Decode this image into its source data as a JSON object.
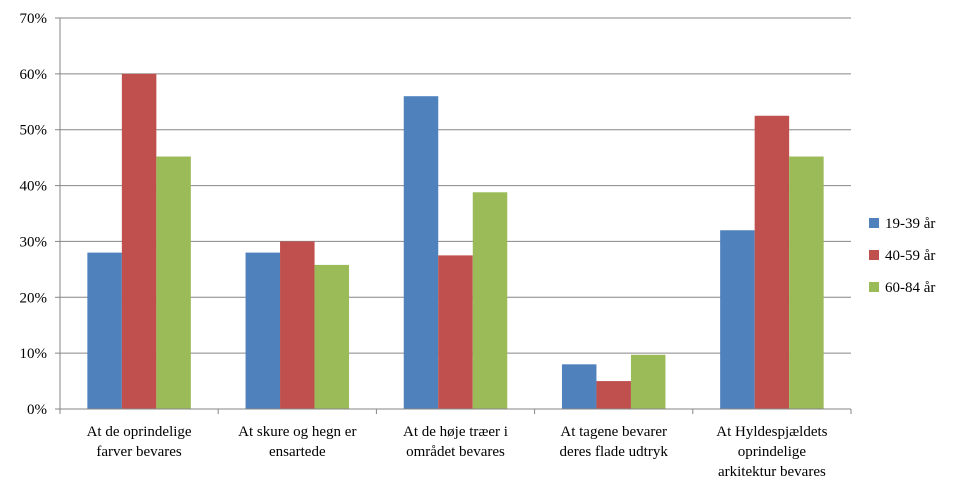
{
  "chart_data": {
    "type": "bar",
    "categories": [
      [
        "At de oprindelige",
        "farver bevares"
      ],
      [
        "At skure og hegn er",
        "ensartede"
      ],
      [
        "At de høje træer i",
        "området bevares"
      ],
      [
        "At tagene bevarer",
        "deres flade udtryk"
      ],
      [
        "At Hyldespjældets",
        "oprindelige",
        "arkitektur bevares"
      ]
    ],
    "series": [
      {
        "name": "19-39 år",
        "color": "#4f81bd",
        "values": [
          28,
          28,
          56,
          8,
          32
        ]
      },
      {
        "name": "40-59 år",
        "color": "#c0504d",
        "values": [
          60,
          30,
          27.5,
          5,
          52.5
        ]
      },
      {
        "name": "60-84 år",
        "color": "#9bbb59",
        "values": [
          45.2,
          25.8,
          38.8,
          9.7,
          45.2
        ]
      }
    ],
    "ylim": [
      0,
      70
    ],
    "yticks": [
      "0%",
      "10%",
      "20%",
      "30%",
      "40%",
      "50%",
      "60%",
      "70%"
    ],
    "grid": true,
    "legend_position": "right"
  }
}
